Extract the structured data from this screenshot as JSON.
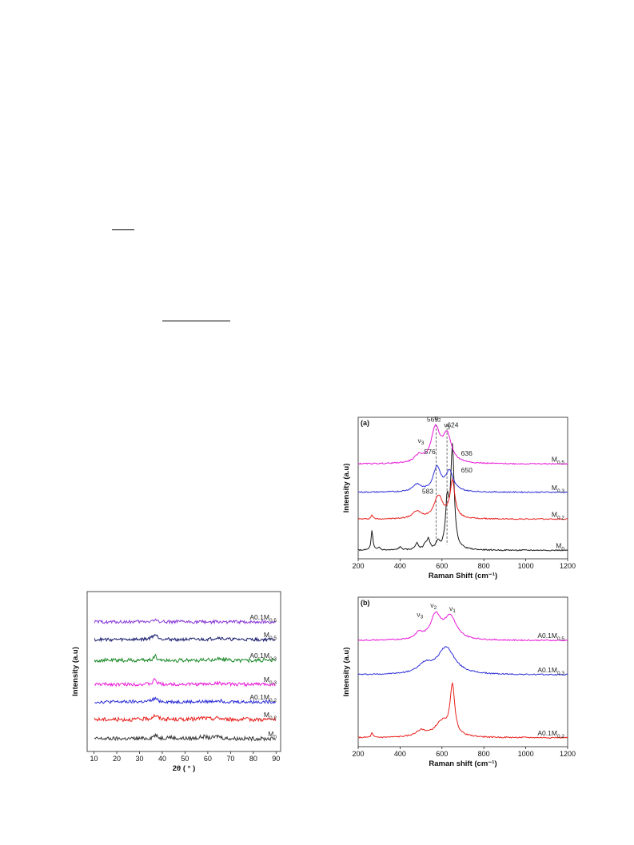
{
  "chart_data": [
    {
      "id": "xrd",
      "type": "line",
      "xlabel": "2θ ( ° )",
      "ylabel": "Intensity (a.u)",
      "xlim": [
        7,
        92
      ],
      "xticks": [
        10,
        20,
        30,
        40,
        50,
        60,
        70,
        80,
        90
      ],
      "y_ticks_shown": false,
      "grid": false,
      "series": [
        {
          "label_base": "M",
          "label_sub": "0",
          "color": "#3a3a3a",
          "baseline": 0.08,
          "amp": 0.012,
          "peaks": [
            [
              36.8,
              0.02,
              1.2
            ],
            [
              43,
              0.01,
              1.5
            ],
            [
              58,
              0.012,
              2
            ],
            [
              64.5,
              0.015,
              1.5
            ]
          ]
        },
        {
          "label_base": "M",
          "label_sub": "0.2",
          "color": "#e8211d",
          "baseline": 0.2,
          "amp": 0.012,
          "peaks": [
            [
              36.8,
              0.025,
              1.5
            ],
            [
              58,
              0.01,
              2
            ],
            [
              64.5,
              0.01,
              1.5
            ]
          ]
        },
        {
          "label_base": "A0.1M",
          "label_sub": "0.2",
          "color": "#2d2fd6",
          "baseline": 0.31,
          "amp": 0.01,
          "peaks": [
            [
              36.8,
              0.02,
              1.5
            ],
            [
              64.5,
              0.01,
              2
            ]
          ]
        },
        {
          "label_base": "M",
          "label_sub": "0.3",
          "color": "#e81ad8",
          "baseline": 0.42,
          "amp": 0.01,
          "peaks": [
            [
              36.8,
              0.035,
              0.7
            ],
            [
              64.5,
              0.008,
              2
            ]
          ]
        },
        {
          "label_base": "A0.1M",
          "label_sub": "0.3",
          "color": "#1d8a2a",
          "baseline": 0.57,
          "amp": 0.012,
          "peaks": [
            [
              36.8,
              0.03,
              0.8
            ],
            [
              64.5,
              0.01,
              2
            ]
          ]
        },
        {
          "label_base": "M",
          "label_sub": "0.5",
          "color": "#1a1f6e",
          "baseline": 0.7,
          "amp": 0.01,
          "peaks": [
            [
              36.8,
              0.03,
              1.5
            ],
            [
              64.5,
              0.012,
              2
            ]
          ]
        },
        {
          "label_base": "A0.1M",
          "label_sub": "0.5",
          "color": "#8a3ad8",
          "baseline": 0.81,
          "amp": 0.01,
          "peaks": [
            [
              36.8,
              0.01,
              2
            ]
          ]
        }
      ]
    },
    {
      "id": "raman-a",
      "type": "line",
      "panel_label": "(a)",
      "xlabel": "Raman Shift (cm⁻¹)",
      "ylabel": "Intensity (a.u)",
      "xlim": [
        200,
        1200
      ],
      "xticks": [
        200,
        400,
        600,
        800,
        1000,
        1200
      ],
      "y_ticks_shown": false,
      "grid": false,
      "series": [
        {
          "label_base": "M",
          "label_sub": "0",
          "color": "#1a1a1a",
          "baseline": 0.06,
          "peaks": [
            [
              266,
              0.14,
              5
            ],
            [
              300,
              0.02,
              6
            ],
            [
              400,
              0.02,
              10
            ],
            [
              480,
              0.045,
              10
            ],
            [
              520,
              0.035,
              8
            ],
            [
              535,
              0.07,
              8
            ],
            [
              580,
              0.05,
              10
            ],
            [
              625,
              0.32,
              9
            ],
            [
              650,
              0.72,
              10
            ]
          ]
        },
        {
          "label_base": "M",
          "label_sub": "0.2",
          "color": "#e8211d",
          "baseline": 0.28,
          "peaks": [
            [
              266,
              0.03,
              5
            ],
            [
              480,
              0.05,
              25
            ],
            [
              583,
              0.16,
              25
            ],
            [
              650,
              0.26,
              14
            ]
          ]
        },
        {
          "label_base": "M",
          "label_sub": "0.3",
          "color": "#2d2fd6",
          "baseline": 0.47,
          "peaks": [
            [
              480,
              0.05,
              25
            ],
            [
              576,
              0.17,
              22
            ],
            [
              636,
              0.14,
              22
            ]
          ]
        },
        {
          "label_base": "M",
          "label_sub": "0.5",
          "color": "#e81ad8",
          "baseline": 0.67,
          "peaks": [
            [
              490,
              0.05,
              25
            ],
            [
              569,
              0.24,
              25
            ],
            [
              624,
              0.19,
              25
            ]
          ]
        }
      ],
      "annotations": [
        {
          "text": "569",
          "x": 555,
          "y": 0.97
        },
        {
          "text": "576",
          "x": 542,
          "y": 0.74
        },
        {
          "text": "583",
          "x": 532,
          "y": 0.46
        },
        {
          "text": "636",
          "x": 718,
          "y": 0.73
        },
        {
          "text": "650",
          "x": 718,
          "y": 0.61
        },
        {
          "text": "624",
          "x": 652,
          "y": 0.93
        },
        {
          "text": "ν",
          "sub": "3",
          "x": 500,
          "y": 0.82
        },
        {
          "text": "ν",
          "sub": "2",
          "x": 580,
          "y": 0.98
        },
        {
          "text": "ν",
          "sub": "1",
          "x": 625,
          "y": 0.93
        }
      ],
      "dashed_lines_x": [
        572,
        624
      ]
    },
    {
      "id": "raman-b",
      "type": "line",
      "panel_label": "(b)",
      "xlabel": "Raman shift (cm⁻¹)",
      "ylabel": "Intensity (a.u)",
      "xlim": [
        200,
        1200
      ],
      "xticks": [
        200,
        400,
        600,
        800,
        1000,
        1200
      ],
      "y_ticks_shown": false,
      "grid": false,
      "series": [
        {
          "label_base": "A0.1M",
          "label_sub": "0.2",
          "color": "#e8211d",
          "baseline": 0.06,
          "peaks": [
            [
              266,
              0.03,
              5
            ],
            [
              500,
              0.04,
              30
            ],
            [
              600,
              0.1,
              40
            ],
            [
              650,
              0.33,
              13
            ]
          ]
        },
        {
          "label_base": "A0.1M",
          "label_sub": "0.3",
          "color": "#2d2fd6",
          "baseline": 0.48,
          "peaks": [
            [
              520,
              0.06,
              40
            ],
            [
              620,
              0.18,
              50
            ]
          ]
        },
        {
          "label_base": "A0.1M",
          "label_sub": "0.5",
          "color": "#e81ad8",
          "baseline": 0.71,
          "peaks": [
            [
              490,
              0.04,
              20
            ],
            [
              570,
              0.16,
              30
            ],
            [
              640,
              0.15,
              35
            ]
          ]
        }
      ],
      "annotations": [
        {
          "text": "ν",
          "sub": "3",
          "x": 495,
          "y": 0.87
        },
        {
          "text": "ν",
          "sub": "2",
          "x": 560,
          "y": 0.93
        },
        {
          "text": "ν",
          "sub": "1",
          "x": 650,
          "y": 0.91
        }
      ]
    }
  ]
}
